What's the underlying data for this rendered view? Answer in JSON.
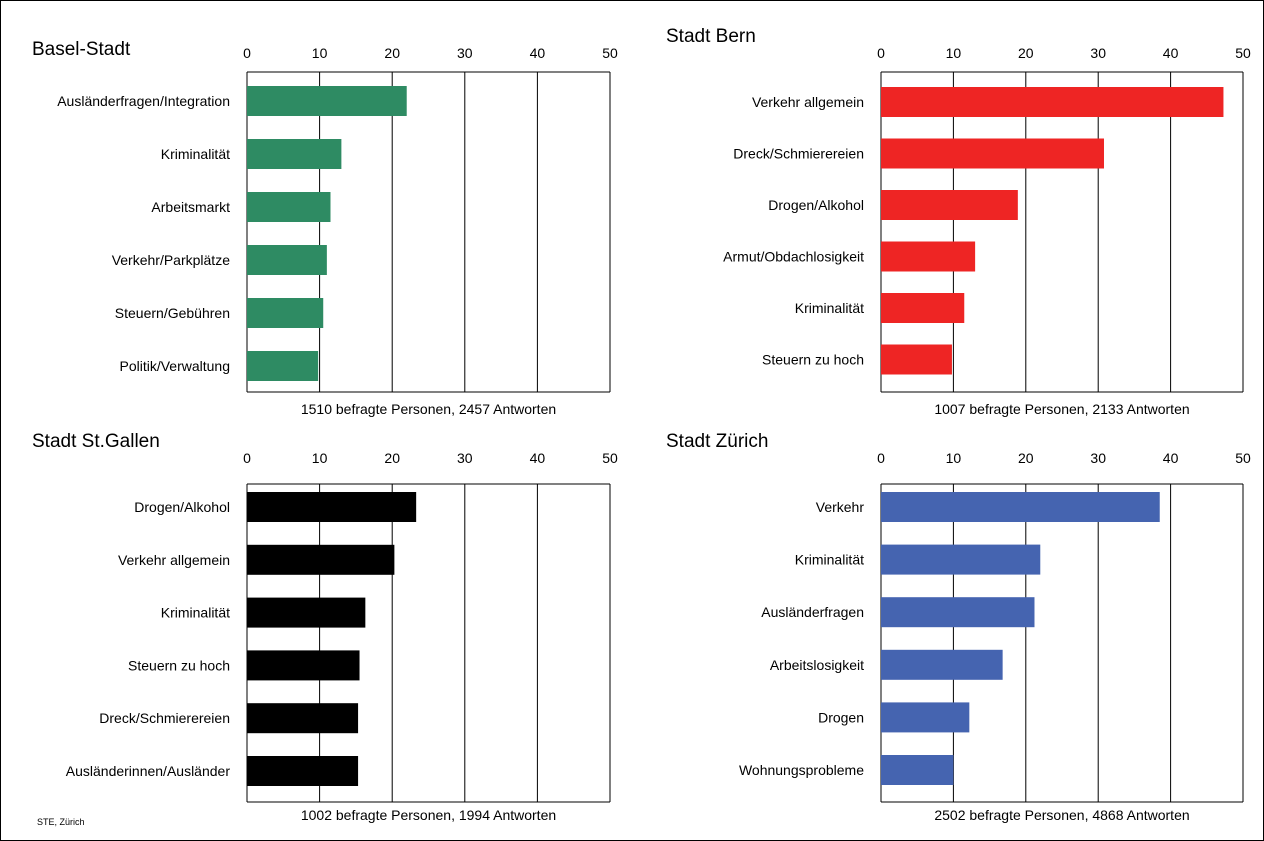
{
  "source": "STE, Zürich",
  "chart_data": [
    {
      "type": "bar",
      "orientation": "horizontal",
      "title": "Basel-Stadt",
      "xlim": [
        0,
        50
      ],
      "xticks": [
        0,
        10,
        20,
        30,
        40,
        50
      ],
      "color": "#2e8b63",
      "categories": [
        "Ausländerfragen/Integration",
        "Kriminalität",
        "Arbeitsmarkt",
        "Verkehr/Parkplätze",
        "Steuern/Gebühren",
        "Politik/Verwaltung"
      ],
      "values": [
        22,
        13,
        11.5,
        11,
        10.5,
        9.8
      ],
      "note": "1510 befragte Personen, 2457 Antworten",
      "grid": true
    },
    {
      "type": "bar",
      "orientation": "horizontal",
      "title": "Stadt Bern",
      "xlim": [
        0,
        50
      ],
      "xticks": [
        0,
        10,
        20,
        30,
        40,
        50
      ],
      "color": "#ee2524",
      "categories": [
        "Verkehr allgemein",
        "Dreck/Schmierereien",
        "Drogen/Alkohol",
        "Armut/Obdachlosigkeit",
        "Kriminalität",
        "Steuern zu hoch"
      ],
      "values": [
        47.3,
        30.8,
        18.9,
        13,
        11.5,
        9.8
      ],
      "note": "1007 befragte Personen, 2133 Antworten",
      "grid": true
    },
    {
      "type": "bar",
      "orientation": "horizontal",
      "title": "Stadt St.Gallen",
      "xlim": [
        0,
        50
      ],
      "xticks": [
        0,
        10,
        20,
        30,
        40,
        50
      ],
      "color": "#000000",
      "categories": [
        "Drogen/Alkohol",
        "Verkehr allgemein",
        "Kriminalität",
        "Steuern zu hoch",
        "Dreck/Schmierereien",
        "Ausländerinnen/Ausländer"
      ],
      "values": [
        23.3,
        20.3,
        16.3,
        15.5,
        15.3,
        15.3
      ],
      "note": "1002 befragte Personen, 1994 Antworten",
      "grid": true
    },
    {
      "type": "bar",
      "orientation": "horizontal",
      "title": "Stadt Zürich",
      "xlim": [
        0,
        50
      ],
      "xticks": [
        0,
        10,
        20,
        30,
        40,
        50
      ],
      "color": "#4564b0",
      "categories": [
        "Verkehr",
        "Kriminalität",
        "Ausländerfragen",
        "Arbeitslosigkeit",
        "Drogen",
        "Wohnungsprobleme"
      ],
      "values": [
        38.5,
        22,
        21.2,
        16.8,
        12.2,
        10
      ],
      "note": "2502 befragte Personen,  4868 Antworten",
      "grid": true
    }
  ]
}
